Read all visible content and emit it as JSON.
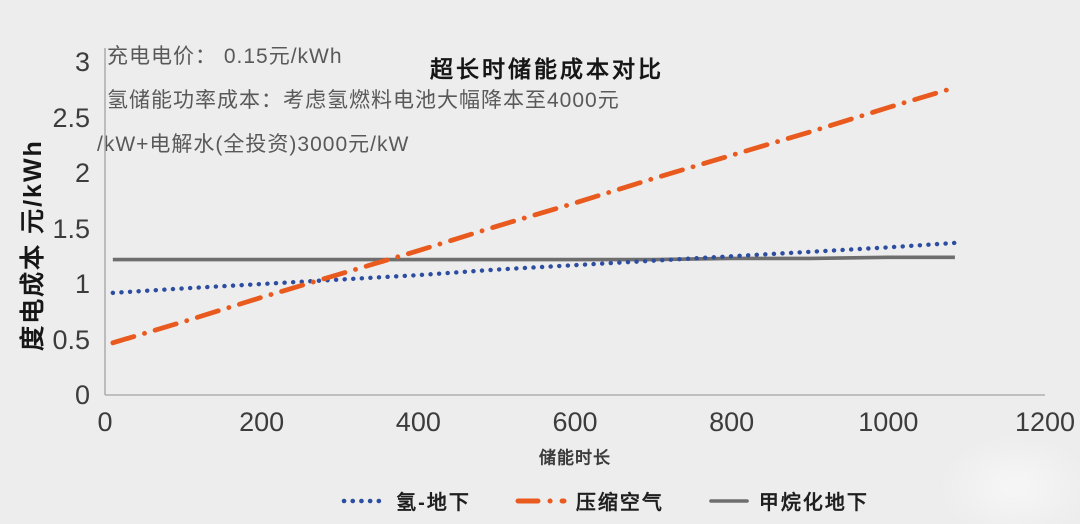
{
  "palette": {
    "background": "#EDEDED",
    "axis": "#B0B0B0",
    "tick_text": "#3C3C3C",
    "annotation_text": "#595959",
    "title_text": "#161616",
    "legend_text": "#1F1F1F"
  },
  "chart_data": {
    "type": "line",
    "title": "超长时储能成本对比",
    "xlabel": "储能时长",
    "ylabel": "度电成本 元/kWh",
    "xlim": [
      0,
      1200
    ],
    "ylim": [
      0,
      3
    ],
    "x_ticks": [
      0,
      200,
      400,
      600,
      800,
      1000,
      1200
    ],
    "y_ticks": [
      0,
      0.5,
      1,
      1.5,
      2,
      2.5,
      3
    ],
    "grid": false,
    "legend_position": "bottom",
    "annotations": [
      "充电电价： 0.15元/kWh",
      "氢储能功率成本：考虑氢燃料电池大幅降本至4000元",
      "/kW+电解水(全投资)3000元/kW"
    ],
    "x": [
      10,
      100,
      200,
      300,
      400,
      500,
      600,
      700,
      800,
      900,
      1000,
      1085
    ],
    "series": [
      {
        "name": "氢-地下",
        "color": "#2C4DA0",
        "line_style": "dotted",
        "values": [
          0.92,
          0.96,
          1.0,
          1.04,
          1.08,
          1.13,
          1.17,
          1.21,
          1.25,
          1.29,
          1.33,
          1.37
        ]
      },
      {
        "name": "压缩空气",
        "color": "#E95A1E",
        "line_style": "dash-dot",
        "values": [
          0.47,
          0.66,
          0.88,
          1.09,
          1.3,
          1.52,
          1.73,
          1.95,
          2.16,
          2.37,
          2.59,
          2.77
        ]
      },
      {
        "name": "甲烷化地下",
        "color": "#6E6E6E",
        "line_style": "solid",
        "values": [
          1.22,
          1.22,
          1.22,
          1.22,
          1.22,
          1.22,
          1.22,
          1.22,
          1.23,
          1.23,
          1.24,
          1.24
        ]
      }
    ]
  }
}
